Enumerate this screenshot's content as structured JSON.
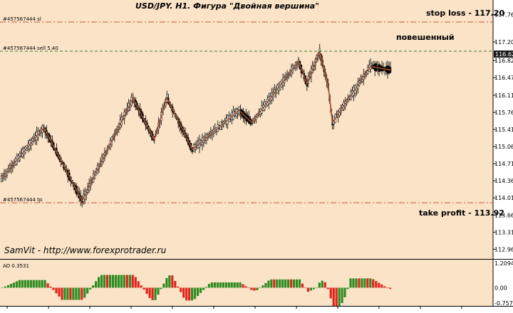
{
  "chart": {
    "title": "USD/JPY. H1. Фигура \"Двойная вершина\"",
    "credit": "SamVit - http://www.forexprotrader.ru",
    "labels": {
      "stop_loss": "stop loss - 117.20",
      "take_profit": "take profit - 113.92",
      "hanged": "повешенный",
      "order_sl": "#457567444 sl",
      "order_sell": "#457567444 sell 5.40",
      "order_tp": "#457567444 tp"
    },
    "price_tag": "116.62",
    "indicator_label": "AO 0.3531",
    "colors": {
      "background": "#fae3c7",
      "sl_tp_line": "#c8553a",
      "entry_line": "#4a7a3a",
      "zigzag": "#a0522d",
      "ao_up": "#2e8b22",
      "ao_down": "#e0241c",
      "price_tag_bg": "#1a1a1a"
    }
  },
  "chart_data": [
    {
      "type": "candlestick",
      "title": "USD/JPY. H1. Фигура \"Двойная вершина\"",
      "y_ticks": [
        "117.76",
        "117.20",
        "116.82",
        "116.47",
        "116.11",
        "115.76",
        "115.41",
        "115.06",
        "114.71",
        "114.36",
        "114.01",
        "113.66",
        "113.31",
        "112.96"
      ],
      "ylim": [
        112.82,
        118.0
      ],
      "annotations": [
        {
          "text": "stop loss - 117.20",
          "value": 117.2
        },
        {
          "text": "take profit - 113.92",
          "value": 113.92
        },
        {
          "text": "повешенный"
        },
        {
          "text": "#457567444 sell 5.40",
          "value": 116.62
        }
      ],
      "zigzag_approx": [
        [
          0,
          114.4
        ],
        [
          10,
          115.45
        ],
        [
          19,
          113.95
        ],
        [
          31,
          116.05
        ],
        [
          36,
          115.2
        ],
        [
          39,
          116.05
        ],
        [
          45,
          115.0
        ],
        [
          56,
          115.8
        ],
        [
          59,
          115.55
        ],
        [
          70,
          116.8
        ],
        [
          72,
          116.35
        ],
        [
          75,
          117.0
        ],
        [
          77,
          116.3
        ],
        [
          78,
          115.55
        ],
        [
          87,
          116.7
        ],
        [
          92,
          116.62
        ]
      ]
    },
    {
      "type": "bar",
      "title": "AO 0.3531",
      "y_ticks": [
        "1.2094",
        "0.00",
        "-0.757"
      ],
      "ylim": [
        -0.757,
        1.2094
      ]
    }
  ]
}
